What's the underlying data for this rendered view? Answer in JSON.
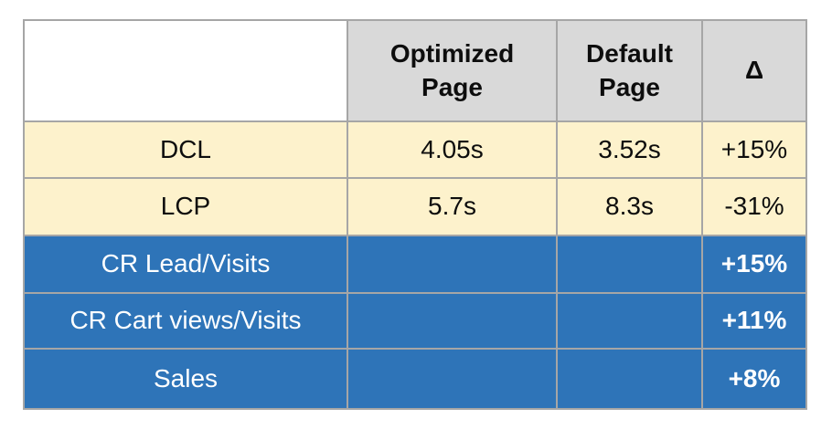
{
  "chart_data": {
    "type": "table",
    "title": "",
    "columns": [
      "",
      "Optimized Page",
      "Default Page",
      "Δ"
    ],
    "rows": [
      {
        "label": "DCL",
        "optimized": "4.05s",
        "default_page": "3.52s",
        "delta": "+15%",
        "group": "page-speed-metric"
      },
      {
        "label": "LCP",
        "optimized": "5.7s",
        "default_page": "8.3s",
        "delta": "-31%",
        "group": "page-speed-metric"
      },
      {
        "label": "CR Lead/Visits",
        "optimized": "",
        "default_page": "",
        "delta": "+15%",
        "group": "conversion-metric"
      },
      {
        "label": "CR Cart views/Visits",
        "optimized": "",
        "default_page": "",
        "delta": "+11%",
        "group": "conversion-metric"
      },
      {
        "label": "Sales",
        "optimized": "",
        "default_page": "",
        "delta": "+8%",
        "group": "conversion-metric"
      }
    ],
    "layout_hints": {
      "header_row": true,
      "first_column_is_labels": true,
      "grid": "on"
    },
    "colors": {
      "header_bg": "#d9d9d9",
      "metric_row_bg": "#fdf2cc",
      "conversion_row_bg": "#2e74b8",
      "gridline": "#a6a6a6",
      "text_dark": "#0d0d0d",
      "text_light": "#ffffff"
    }
  }
}
